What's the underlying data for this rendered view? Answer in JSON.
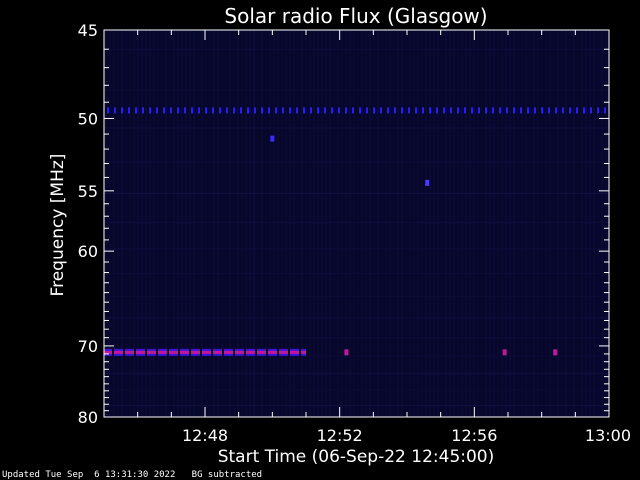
{
  "chart_data": {
    "type": "heatmap",
    "title": "Solar radio Flux (Glasgow)",
    "xlabel": "Start Time (06-Sep-22 12:45:00)",
    "ylabel": "Frequency [MHz]",
    "x_start": "12:45:00",
    "x_end": "13:00:00",
    "xlim_minutes": [
      0,
      15
    ],
    "x_ticks": [
      {
        "label": "12:48",
        "minute": 3
      },
      {
        "label": "12:52",
        "minute": 7
      },
      {
        "label": "12:56",
        "minute": 11
      },
      {
        "label": "13:00",
        "minute": 15
      }
    ],
    "ylim": [
      45,
      80
    ],
    "y_scale": "reciprocal",
    "y_ticks": [
      {
        "label": "45",
        "value": 45
      },
      {
        "label": "50",
        "value": 50
      },
      {
        "label": "55",
        "value": 55
      },
      {
        "label": "60",
        "value": 60
      },
      {
        "label": "70",
        "value": 70
      },
      {
        "label": "80",
        "value": 80
      }
    ],
    "background_color": "#06062a",
    "features": [
      {
        "kind": "dotted-band",
        "frequency": 49.5,
        "minute_start": 0,
        "minute_end": 15,
        "color": "#2a1aff"
      },
      {
        "kind": "band",
        "frequency": 70.8,
        "minute_start": 0,
        "minute_end": 6.0,
        "color": "#c0189a",
        "edge_color": "#3a14d8"
      },
      {
        "kind": "spot",
        "frequency": 70.8,
        "minute": 7.2,
        "color": "#c0189a"
      },
      {
        "kind": "spot",
        "frequency": 70.8,
        "minute": 11.9,
        "color": "#c0189a"
      },
      {
        "kind": "spot",
        "frequency": 70.8,
        "minute": 13.4,
        "color": "#c0189a"
      },
      {
        "kind": "spot",
        "frequency": 51.3,
        "minute": 5.0,
        "color": "#3a28ff"
      },
      {
        "kind": "spot",
        "frequency": 54.4,
        "minute": 9.6,
        "color": "#4a3aff"
      }
    ]
  },
  "footer": {
    "text": "Updated Tue Sep  6 13:31:30 2022   BG subtracted"
  }
}
